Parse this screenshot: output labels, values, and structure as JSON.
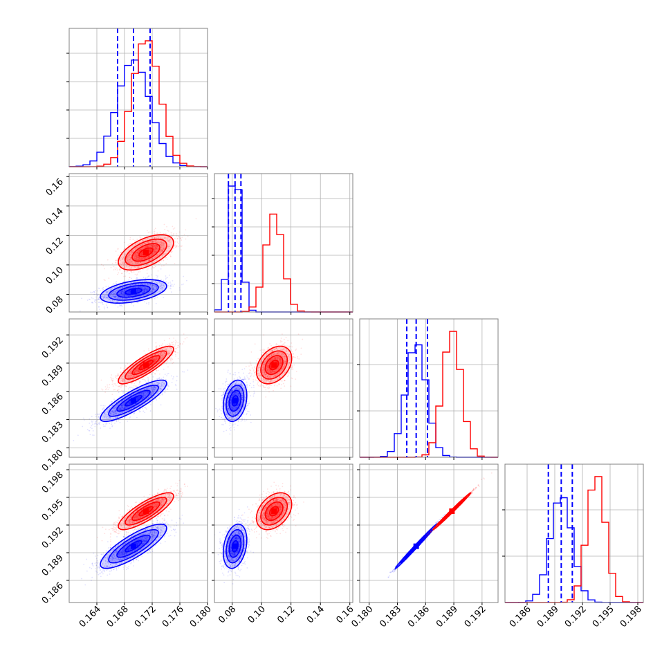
{
  "chart_data": {
    "type": "scatter",
    "subtype": "corner-plot",
    "grid": true,
    "colors": {
      "blue": "#0000ff",
      "red": "#ff0000"
    },
    "parameters": [
      {
        "range": [
          0.16,
          0.18
        ],
        "ticks": [
          "0.164",
          "0.168",
          "0.172",
          "0.176",
          "0.180"
        ]
      },
      {
        "range": [
          0.068,
          0.162
        ],
        "ticks": [
          "0.08",
          "0.10",
          "0.12",
          "0.14",
          "0.16"
        ]
      },
      {
        "range": [
          0.179,
          0.1937
        ],
        "ticks": [
          "0.180",
          "0.183",
          "0.186",
          "0.189",
          "0.192"
        ]
      },
      {
        "range": [
          0.1836,
          0.1986
        ],
        "ticks": [
          "0.186",
          "0.189",
          "0.192",
          "0.195",
          "0.198"
        ]
      }
    ],
    "series": [
      {
        "color": "blue",
        "mean": [
          0.1693,
          0.082,
          0.185,
          0.1897
        ],
        "sd": [
          0.0024,
          0.004,
          0.0011,
          0.0012
        ],
        "corr": [
          [
            1,
            0.45,
            0.85,
            0.82
          ],
          [
            0.45,
            1,
            0.25,
            0.28
          ],
          [
            0.85,
            0.25,
            1,
            0.995
          ],
          [
            0.82,
            0.28,
            0.995,
            1
          ]
        ],
        "quantiles": [
          [
            0.167,
            0.1693,
            0.1717
          ],
          [
            0.0775,
            0.082,
            0.086
          ],
          [
            0.184,
            0.185,
            0.1862
          ],
          [
            0.1883,
            0.1897,
            0.1909
          ]
        ]
      },
      {
        "color": "red",
        "mean": [
          0.1711,
          0.1085,
          0.1888,
          0.1935
        ],
        "sd": [
          0.002,
          0.006,
          0.001,
          0.001
        ],
        "corr": [
          [
            1,
            0.55,
            0.85,
            0.82
          ],
          [
            0.55,
            1,
            0.35,
            0.38
          ],
          [
            0.85,
            0.35,
            1,
            0.995
          ],
          [
            0.82,
            0.38,
            0.995,
            1
          ]
        ]
      }
    ]
  }
}
